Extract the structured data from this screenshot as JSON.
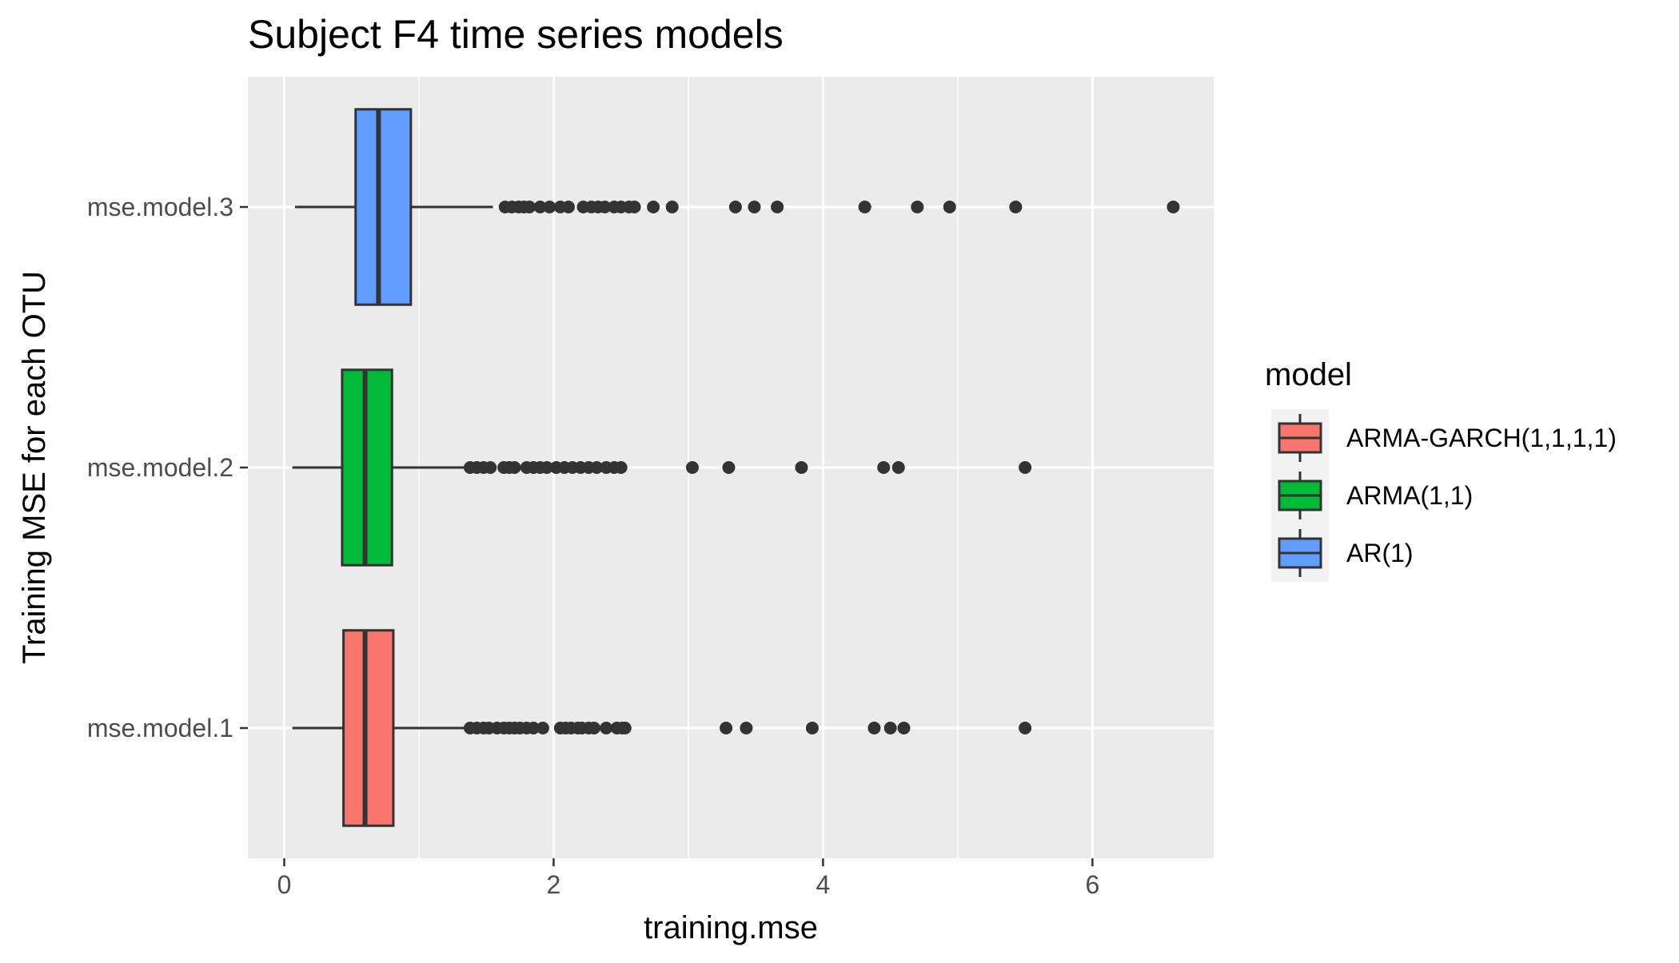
{
  "chart_data": {
    "type": "boxplot",
    "orientation": "horizontal",
    "title": "Subject F4 time series models",
    "xlabel": "training.mse",
    "ylabel": "Training MSE for each OTU",
    "xlim": [
      -0.27,
      6.9
    ],
    "x_ticks": [
      0,
      2,
      4,
      6
    ],
    "categories": [
      "mse.model.1",
      "mse.model.2",
      "mse.model.3"
    ],
    "grid": true,
    "legend": {
      "title": "model",
      "position": "right",
      "entries": [
        {
          "label": "ARMA-GARCH(1,1,1,1)",
          "color": "#F8766D"
        },
        {
          "label": "ARMA(1,1)",
          "color": "#00BA38"
        },
        {
          "label": "AR(1)",
          "color": "#619CFF"
        }
      ]
    },
    "series": [
      {
        "name": "ARMA-GARCH(1,1,1,1)",
        "category": "mse.model.1",
        "color": "#F8766D",
        "whisker_low": 0.06,
        "q1": 0.44,
        "median": 0.6,
        "q3": 0.81,
        "whisker_high": 1.36,
        "outliers": [
          1.38,
          1.43,
          1.48,
          1.52,
          1.58,
          1.63,
          1.67,
          1.71,
          1.75,
          1.8,
          1.85,
          1.92,
          2.05,
          2.09,
          2.13,
          2.18,
          2.21,
          2.26,
          2.3,
          2.39,
          2.47,
          2.51,
          2.53,
          3.28,
          3.43,
          3.92,
          4.38,
          4.5,
          4.6,
          5.5
        ]
      },
      {
        "name": "ARMA(1,1)",
        "category": "mse.model.2",
        "color": "#00BA38",
        "whisker_low": 0.06,
        "q1": 0.43,
        "median": 0.6,
        "q3": 0.8,
        "whisker_high": 1.36,
        "outliers": [
          1.38,
          1.43,
          1.48,
          1.53,
          1.63,
          1.67,
          1.71,
          1.8,
          1.85,
          1.9,
          1.95,
          2.02,
          2.08,
          2.14,
          2.2,
          2.26,
          2.32,
          2.39,
          2.45,
          2.5,
          3.03,
          3.3,
          3.84,
          4.45,
          4.56,
          5.5
        ]
      },
      {
        "name": "AR(1)",
        "category": "mse.model.3",
        "color": "#619CFF",
        "whisker_low": 0.08,
        "q1": 0.53,
        "median": 0.7,
        "q3": 0.94,
        "whisker_high": 1.55,
        "outliers": [
          1.64,
          1.69,
          1.74,
          1.78,
          1.82,
          1.9,
          1.97,
          2.05,
          2.11,
          2.22,
          2.28,
          2.33,
          2.38,
          2.45,
          2.5,
          2.56,
          2.6,
          2.74,
          2.88,
          3.35,
          3.49,
          3.66,
          4.31,
          4.7,
          4.94,
          5.43,
          6.6
        ]
      }
    ]
  }
}
